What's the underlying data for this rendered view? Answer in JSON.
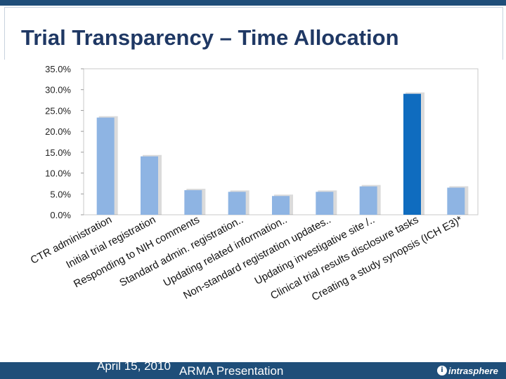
{
  "slide": {
    "title": "Trial Transparency – Time Allocation"
  },
  "footer": {
    "date": "April 15, 2010",
    "presentation": "ARMA Presentation",
    "logo_text": "intrasphere",
    "logo_icon": "intrasphere-logo-icon"
  },
  "colors": {
    "bar": "#8eb4e3",
    "highlight_bar": "#0f6cbf",
    "title": "#1f3864",
    "footer_bg": "#1f4e79"
  },
  "chart_data": {
    "type": "bar",
    "title": "",
    "xlabel": "",
    "ylabel": "",
    "ylim": [
      0,
      35
    ],
    "y_ticks": [
      "0.0%",
      "5.0%",
      "10.0%",
      "15.0%",
      "20.0%",
      "25.0%",
      "30.0%",
      "35.0%"
    ],
    "grid": false,
    "legend": "none",
    "categories": [
      "CTR administration",
      "Initial trial registration",
      "Responding to NIH comments",
      "Standard admin. registration..",
      "Updating related information..",
      "Non-standard registration updates..",
      "Updating investigative site /..",
      "Clinical trial results disclosure tasks",
      "Creating a study synopsis (ICH E3)*"
    ],
    "values": [
      23.3,
      14.0,
      5.9,
      5.5,
      4.5,
      5.5,
      6.8,
      29.0,
      6.5
    ],
    "highlight_index": 7
  }
}
